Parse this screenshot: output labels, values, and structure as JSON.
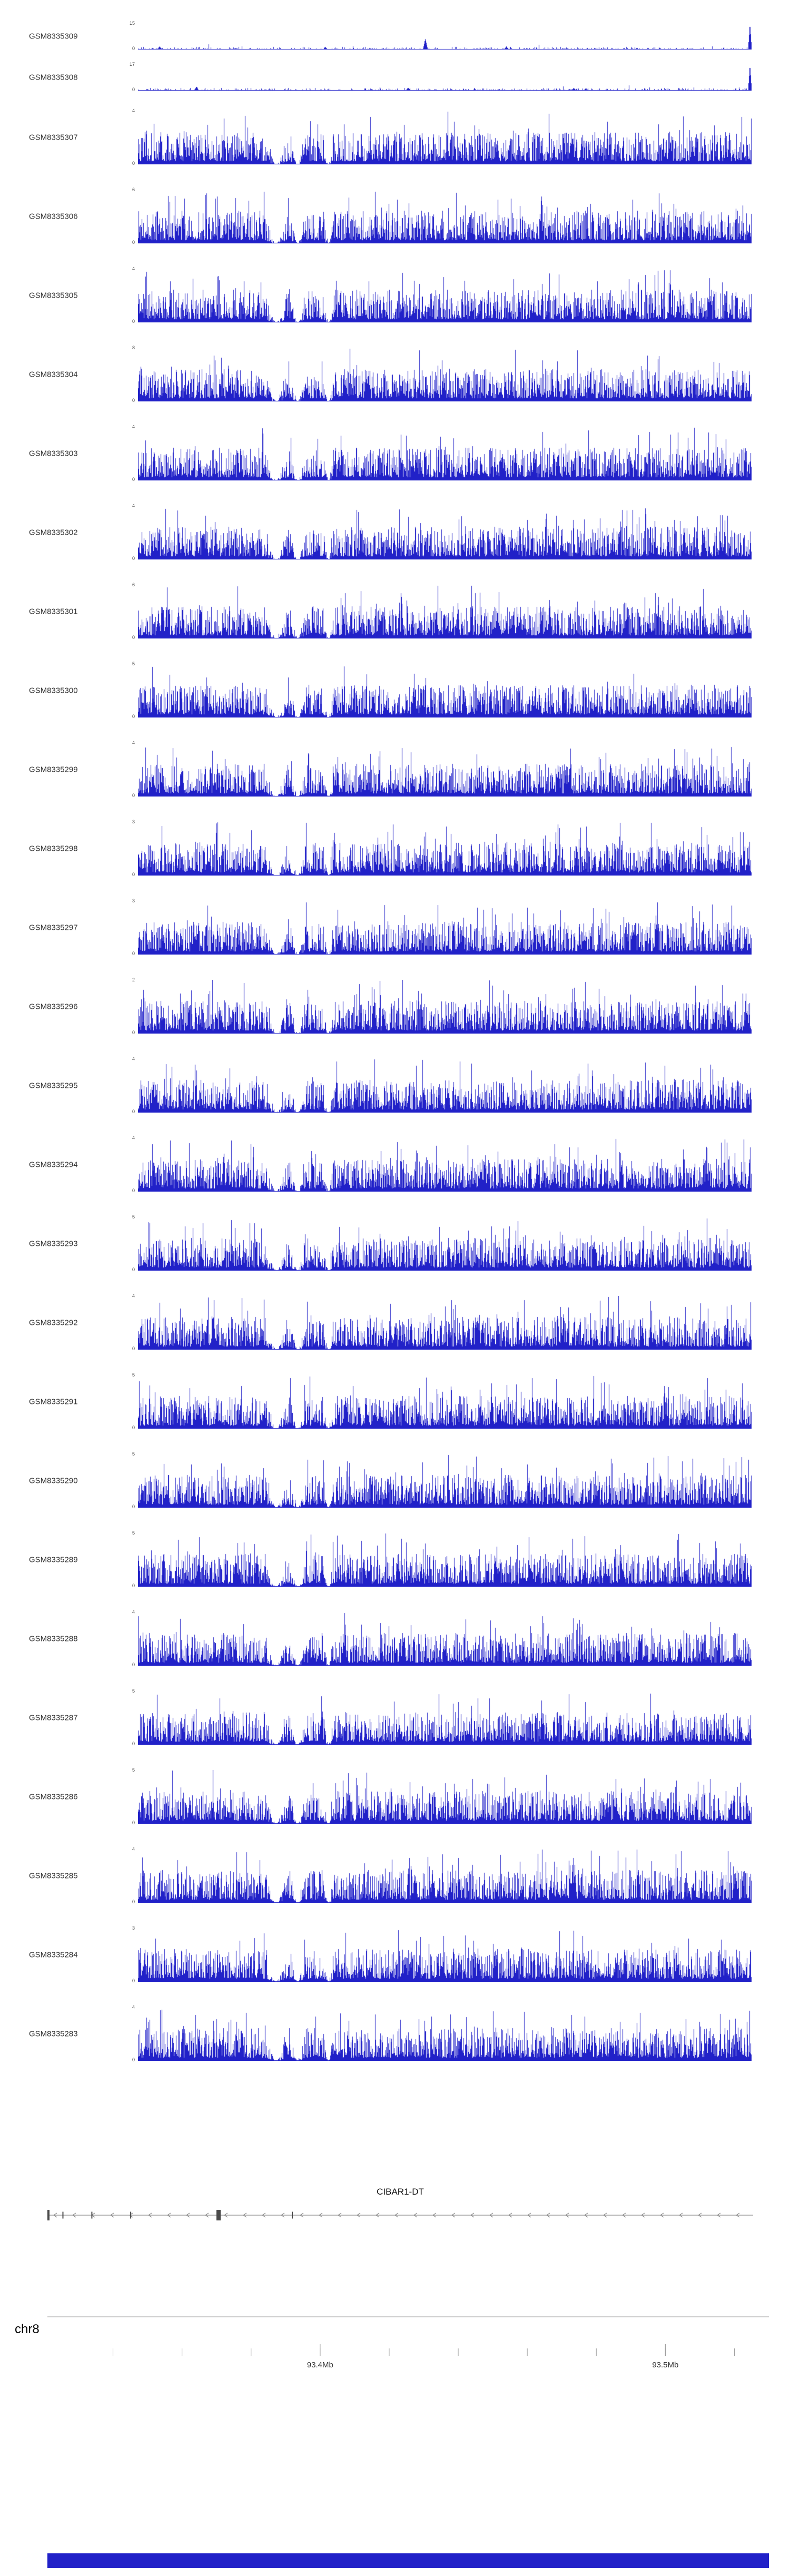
{
  "chart_data": {
    "type": "area",
    "title": "",
    "description": "Genome browser read-coverage tracks over chr8 ~93.32-93.53 Mb with gene model CIBAR1-DT and chromosome axis",
    "signal_color": "#2121C8",
    "bottom_bar_color": "#2121C8",
    "dips": [
      {
        "x": 0.225,
        "w": 0.018
      },
      {
        "x": 0.26,
        "w": 0.012
      },
      {
        "x": 0.31,
        "w": 0.008
      }
    ],
    "tracks": [
      {
        "label": "GSM8335309",
        "ymin": 0,
        "ymax": 15,
        "profile": "sparse",
        "seed": 309,
        "spikes": [
          {
            "x": 0.035,
            "h": 0.12
          },
          {
            "x": 0.305,
            "h": 0.1
          },
          {
            "x": 0.468,
            "h": 0.42
          },
          {
            "x": 0.6,
            "h": 0.12
          },
          {
            "x": 0.997,
            "h": 1.0,
            "w": 0.003
          }
        ]
      },
      {
        "label": "GSM8335308",
        "ymin": 0,
        "ymax": 17,
        "profile": "sparse",
        "seed": 308,
        "spikes": [
          {
            "x": 0.095,
            "h": 0.16
          },
          {
            "x": 0.44,
            "h": 0.12
          },
          {
            "x": 0.71,
            "h": 0.1
          },
          {
            "x": 0.997,
            "h": 1.0,
            "w": 0.003
          }
        ]
      },
      {
        "label": "GSM8335307",
        "ymin": 0,
        "ymax": 4,
        "profile": "dense",
        "seed": 307
      },
      {
        "label": "GSM8335306",
        "ymin": 0,
        "ymax": 6,
        "profile": "dense",
        "seed": 306
      },
      {
        "label": "GSM8335305",
        "ymin": 0,
        "ymax": 4,
        "profile": "dense",
        "seed": 305
      },
      {
        "label": "GSM8335304",
        "ymin": 0,
        "ymax": 8,
        "profile": "dense",
        "seed": 304
      },
      {
        "label": "GSM8335303",
        "ymin": 0,
        "ymax": 4,
        "profile": "dense",
        "seed": 303
      },
      {
        "label": "GSM8335302",
        "ymin": 0,
        "ymax": 4,
        "profile": "dense",
        "seed": 302
      },
      {
        "label": "GSM8335301",
        "ymin": 0,
        "ymax": 6,
        "profile": "dense",
        "seed": 301
      },
      {
        "label": "GSM8335300",
        "ymin": 0,
        "ymax": 5,
        "profile": "dense",
        "seed": 300
      },
      {
        "label": "GSM8335299",
        "ymin": 0,
        "ymax": 4,
        "profile": "dense",
        "seed": 299
      },
      {
        "label": "GSM8335298",
        "ymin": 0,
        "ymax": 3,
        "profile": "dense",
        "seed": 298
      },
      {
        "label": "GSM8335297",
        "ymin": 0,
        "ymax": 3,
        "profile": "dense",
        "seed": 297
      },
      {
        "label": "GSM8335296",
        "ymin": 0,
        "ymax": 2,
        "profile": "dense",
        "seed": 296
      },
      {
        "label": "GSM8335295",
        "ymin": 0,
        "ymax": 4,
        "profile": "dense",
        "seed": 295
      },
      {
        "label": "GSM8335294",
        "ymin": 0,
        "ymax": 4,
        "profile": "dense",
        "seed": 294
      },
      {
        "label": "GSM8335293",
        "ymin": 0,
        "ymax": 5,
        "profile": "dense",
        "seed": 293
      },
      {
        "label": "GSM8335292",
        "ymin": 0,
        "ymax": 4,
        "profile": "dense",
        "seed": 292
      },
      {
        "label": "GSM8335291",
        "ymin": 0,
        "ymax": 5,
        "profile": "dense",
        "seed": 291
      },
      {
        "label": "GSM8335290",
        "ymin": 0,
        "ymax": 5,
        "profile": "dense",
        "seed": 290
      },
      {
        "label": "GSM8335289",
        "ymin": 0,
        "ymax": 5,
        "profile": "dense",
        "seed": 289
      },
      {
        "label": "GSM8335288",
        "ymin": 0,
        "ymax": 4,
        "profile": "dense",
        "seed": 288
      },
      {
        "label": "GSM8335287",
        "ymin": 0,
        "ymax": 5,
        "profile": "dense",
        "seed": 287
      },
      {
        "label": "GSM8335286",
        "ymin": 0,
        "ymax": 5,
        "profile": "dense",
        "seed": 286
      },
      {
        "label": "GSM8335285",
        "ymin": 0,
        "ymax": 4,
        "profile": "dense",
        "seed": 285
      },
      {
        "label": "GSM8335284",
        "ymin": 0,
        "ymax": 3,
        "profile": "dense",
        "seed": 284
      },
      {
        "label": "GSM8335283",
        "ymin": 0,
        "ymax": 4,
        "profile": "dense",
        "seed": 283
      }
    ],
    "gene_track": {
      "label": "CIBAR1-DT",
      "strand": "-",
      "line_color": "#8a8a8a",
      "exon_color": "#4a4a4a",
      "exons": [
        {
          "x": 0.0,
          "w": 0.003,
          "h": 1.0
        },
        {
          "x": 0.022,
          "w": 0.0015,
          "h": 0.65
        },
        {
          "x": 0.063,
          "w": 0.0015,
          "h": 0.65
        },
        {
          "x": 0.118,
          "w": 0.0015,
          "h": 0.65
        },
        {
          "x": 0.2425,
          "w": 0.006,
          "h": 1.0
        },
        {
          "x": 0.347,
          "w": 0.0015,
          "h": 0.65
        }
      ]
    },
    "x_axis": {
      "chromosome_label": "chr8",
      "start_mb": 93.321,
      "end_mb": 93.53,
      "minor_tick_interval_mb": 0.02,
      "major_ticks": [
        {
          "mb": 93.4,
          "label": "93.4Mb"
        },
        {
          "mb": 93.5,
          "label": "93.5Mb"
        }
      ],
      "axis_color": "#999999",
      "label_color": "#333333"
    }
  }
}
